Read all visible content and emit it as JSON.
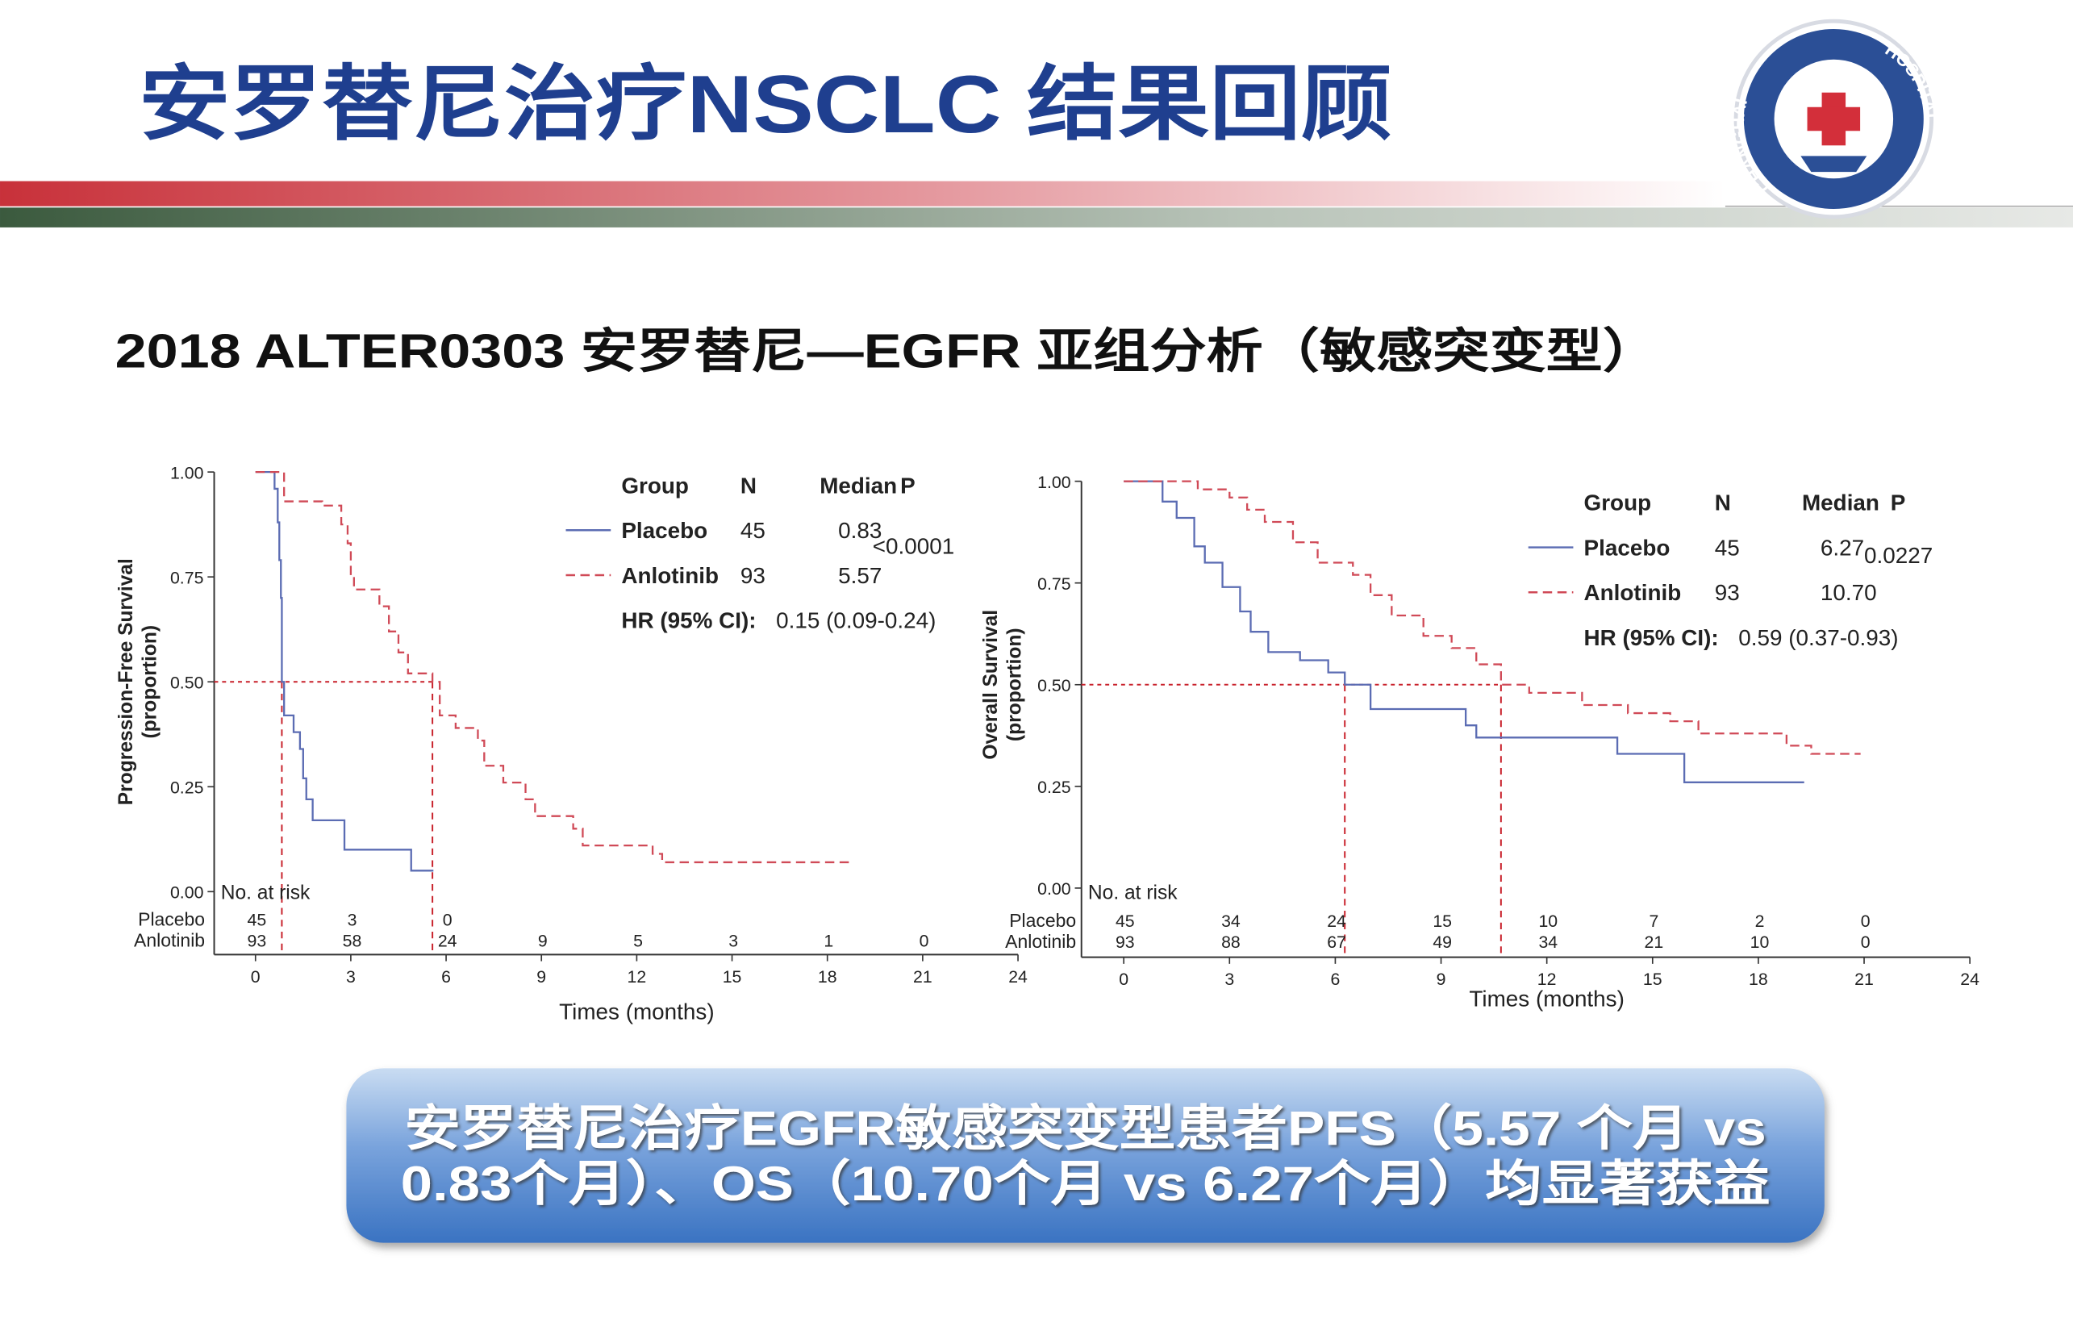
{
  "header": {
    "title": "安罗替尼治疗NSCLC 结果回顾",
    "logo_left": "CHANGHAI",
    "logo_right": "HOSPITAL"
  },
  "subtitle": "2018 ALTER0303 安罗替尼—EGFR 亚组分析（敏感突变型）",
  "chart_data": [
    {
      "type": "line",
      "step": true,
      "y_label": [
        "Progression-Free Survival",
        "(proportion)"
      ],
      "x_label": "Times (months)",
      "xlim": [
        -1.3,
        24
      ],
      "xticks": [
        0,
        3,
        6,
        9,
        12,
        15,
        18,
        21,
        24
      ],
      "ylim": [
        -0.15,
        1
      ],
      "yticks": [
        {
          "value": 0,
          "label": "0.00"
        },
        {
          "value": 0.25,
          "label": "0.25"
        },
        {
          "value": 0.5,
          "label": "0.50"
        },
        {
          "value": 0.75,
          "label": "0.75"
        },
        {
          "value": 1,
          "label": "1.00"
        }
      ],
      "median_level": 0.5,
      "legend_headers": [
        "Group",
        "N",
        "Median",
        "P"
      ],
      "p_value": "<0.0001",
      "hr_label": "HR (95% CI):",
      "hr": "0.15 (0.09-0.24)",
      "risk_title": "No. at risk",
      "series": [
        {
          "name": "Placebo",
          "color": "#5b6cb3",
          "dashed": false,
          "n": 45,
          "median": 0.83,
          "x": [
            0,
            0.6,
            0.7,
            0.75,
            0.8,
            0.83,
            0.9,
            1.2,
            1.4,
            1.5,
            1.6,
            1.8,
            2.8,
            4.9,
            5.6
          ],
          "values": [
            1,
            0.96,
            0.88,
            0.79,
            0.7,
            0.5,
            0.42,
            0.38,
            0.34,
            0.27,
            0.22,
            0.17,
            0.1,
            0.05,
            0.05
          ],
          "at_risk": [
            45,
            3,
            0
          ]
        },
        {
          "name": "Anlotinib",
          "color": "#d04a57",
          "dashed": true,
          "n": 93,
          "median": 5.57,
          "x": [
            0,
            0.9,
            2.1,
            2.7,
            2.9,
            3.0,
            3.1,
            3.9,
            4.2,
            4.5,
            4.8,
            5.57,
            5.8,
            6.3,
            7.0,
            7.2,
            7.8,
            8.5,
            8.8,
            10.0,
            10.3,
            12.5,
            12.8,
            18.7
          ],
          "values": [
            1,
            0.93,
            0.92,
            0.875,
            0.83,
            0.75,
            0.72,
            0.68,
            0.62,
            0.57,
            0.52,
            0.5,
            0.42,
            0.39,
            0.36,
            0.3,
            0.26,
            0.22,
            0.18,
            0.15,
            0.11,
            0.09,
            0.07,
            0.07
          ],
          "at_risk": [
            93,
            58,
            24,
            9,
            5,
            3,
            1,
            0
          ]
        }
      ]
    },
    {
      "type": "line",
      "step": true,
      "y_label": [
        "Overall Survival",
        "(proportion)"
      ],
      "x_label": "Times (months)",
      "xlim": [
        -1.2,
        24
      ],
      "xticks": [
        0,
        3,
        6,
        9,
        12,
        15,
        18,
        21,
        24
      ],
      "ylim": [
        -0.17,
        1
      ],
      "yticks": [
        {
          "value": 0,
          "label": "0.00"
        },
        {
          "value": 0.25,
          "label": "0.25"
        },
        {
          "value": 0.5,
          "label": "0.50"
        },
        {
          "value": 0.75,
          "label": "0.75"
        },
        {
          "value": 1,
          "label": "1.00"
        }
      ],
      "median_level": 0.5,
      "legend_headers": [
        "Group",
        "N",
        "Median",
        "P"
      ],
      "p_value": 0.0227,
      "hr_label": "HR (95% CI):",
      "hr": "0.59 (0.37-0.93)",
      "risk_title": "No. at risk",
      "series": [
        {
          "name": "Placebo",
          "color": "#5b6cb3",
          "dashed": false,
          "n": 45,
          "median": 6.27,
          "x": [
            0,
            0.9,
            1.1,
            1.5,
            2.0,
            2.3,
            2.8,
            3.3,
            3.6,
            4.1,
            5.0,
            5.8,
            6.27,
            7.0,
            9.5,
            9.7,
            10.0,
            12.9,
            14.0,
            15.8,
            15.9,
            19.3
          ],
          "values": [
            1,
            1,
            0.95,
            0.91,
            0.84,
            0.8,
            0.74,
            0.68,
            0.63,
            0.58,
            0.56,
            0.53,
            0.5,
            0.44,
            0.44,
            0.4,
            0.37,
            0.37,
            0.33,
            0.33,
            0.26,
            0.26
          ],
          "at_risk": [
            45,
            34,
            24,
            15,
            10,
            7,
            2,
            0
          ]
        },
        {
          "name": "Anlotinib",
          "color": "#d04a57",
          "dashed": true,
          "n": 93,
          "median": {
            "value": 10.7,
            "label": "10.70"
          },
          "x": [
            0,
            2.0,
            2.1,
            3.0,
            3.5,
            4.0,
            4.8,
            5.5,
            6.5,
            7.0,
            7.6,
            8.5,
            9.3,
            10.0,
            10.7,
            11.5,
            13.0,
            14.3,
            15.5,
            16.3,
            18.8,
            19.5,
            20.9
          ],
          "values": [
            1,
            1,
            0.98,
            0.96,
            0.93,
            0.9,
            0.85,
            0.8,
            0.77,
            0.72,
            0.67,
            0.62,
            0.59,
            0.55,
            0.5,
            0.48,
            0.45,
            0.43,
            0.41,
            0.38,
            0.35,
            0.33,
            0.33
          ],
          "at_risk": [
            93,
            88,
            67,
            49,
            34,
            21,
            10,
            0
          ]
        }
      ]
    }
  ],
  "callout": [
    "安罗替尼治疗EGFR敏感突变型患者PFS（5.57 个月 vs",
    "0.83个月）、OS（10.70个月 vs 6.27个月）均显著获益"
  ]
}
